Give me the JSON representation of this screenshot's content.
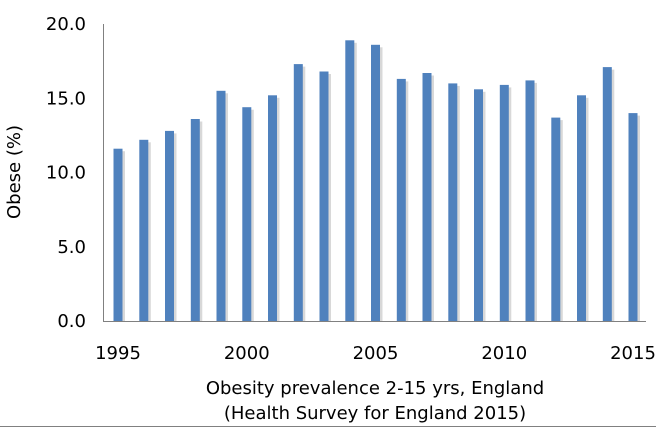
{
  "chart_data": {
    "type": "bar",
    "title": "",
    "xlabel_line1": "Obesity prevalence 2-15 yrs, England",
    "xlabel_line2": "(Health Survey for England 2015)",
    "ylabel": "Obese (%)",
    "ylim": [
      0,
      20
    ],
    "yticks": [
      "0.0",
      "5.0",
      "10.0",
      "15.0",
      "20.0"
    ],
    "xtick_years": [
      "1995",
      "2000",
      "2005",
      "2010",
      "2015"
    ],
    "categories": [
      "1995",
      "1996",
      "1997",
      "1998",
      "1999",
      "2000",
      "2001",
      "2002",
      "2003",
      "2004",
      "2005",
      "2006",
      "2007",
      "2008",
      "2009",
      "2010",
      "2011",
      "2012",
      "2013",
      "2014",
      "2015"
    ],
    "values": [
      11.6,
      12.2,
      12.8,
      13.6,
      15.5,
      14.4,
      15.2,
      17.3,
      16.8,
      18.9,
      18.6,
      16.3,
      16.7,
      16.0,
      15.6,
      15.9,
      16.2,
      13.7,
      15.2,
      17.1,
      14.0
    ],
    "colors": {
      "bar": "#4F81BD",
      "bar_shadow": "#B8B8B8",
      "axis": "#808080"
    }
  }
}
